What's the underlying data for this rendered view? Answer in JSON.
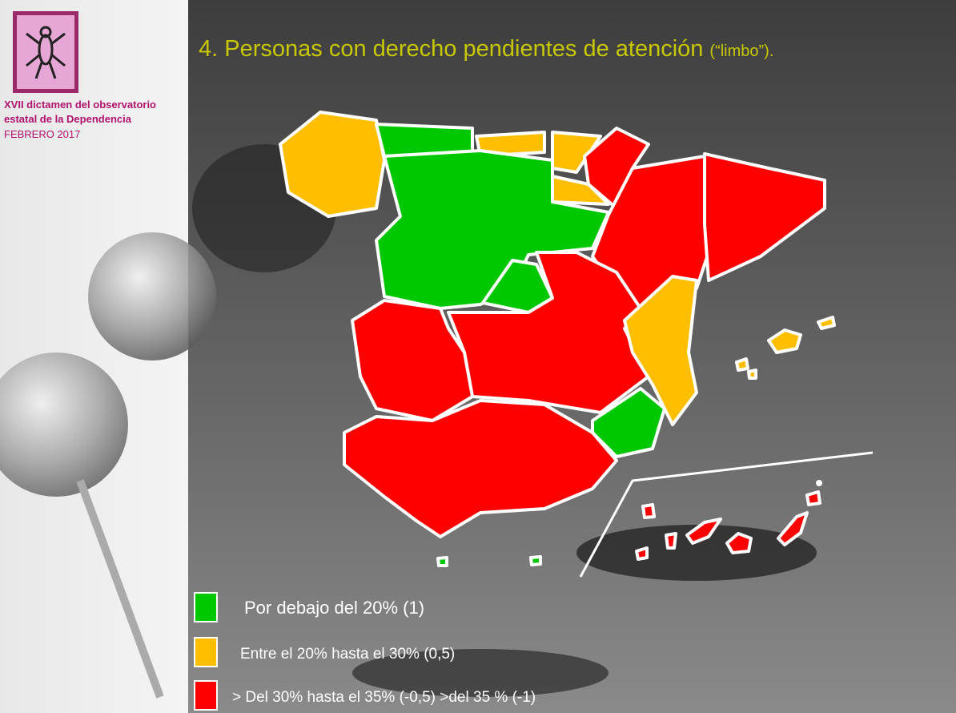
{
  "header": {
    "title": "4. Personas con derecho pendientes de atención",
    "title_note": "(“limbo”).",
    "source_lines": [
      "XVII dictamen del observatorio",
      "estatal de la Dependencia"
    ],
    "date": "FEBRERO 2017"
  },
  "legend": [
    {
      "label": "Por debajo del 20% (1)",
      "color": "#00c800"
    },
    {
      "label": "Entre el 20% hasta el 30% (0,5)",
      "color": "#ffbf00"
    },
    {
      "label": "> Del 30% hasta el 35% (-0,5)  >del 35 %   (-1)",
      "color": "#ff0000"
    }
  ]
}
